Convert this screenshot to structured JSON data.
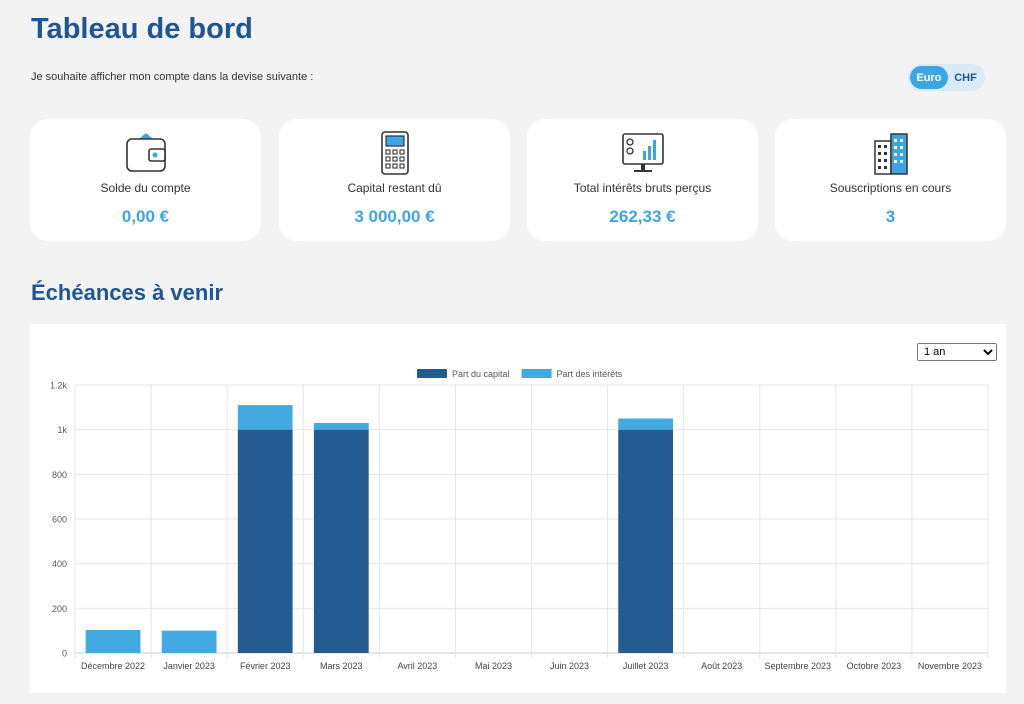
{
  "page": {
    "title": "Tableau de bord",
    "currency_prompt": "Je souhaite afficher mon compte dans la devise suivante :",
    "currency_options": [
      "Euro",
      "CHF"
    ],
    "currency_selected": "Euro"
  },
  "cards": [
    {
      "icon": "wallet-icon",
      "label": "Solde du compte",
      "value": "0,00 €"
    },
    {
      "icon": "calculator-icon",
      "label": "Capital restant dû",
      "value": "3 000,00 €"
    },
    {
      "icon": "monitor-chart-icon",
      "label": "Total intérêts bruts perçus",
      "value": "262,33 €"
    },
    {
      "icon": "building-icon",
      "label": "Souscriptions en cours",
      "value": "3"
    }
  ],
  "schedule": {
    "title": "Échéances à venir",
    "period_select": {
      "selected": "1 an",
      "options": [
        "1 an"
      ]
    }
  },
  "colors": {
    "capital": "#245b91",
    "interest": "#42a9e1",
    "accent": "#3aa7e4",
    "title": "#1f5592"
  },
  "chart_data": {
    "type": "bar",
    "stacked": true,
    "categories": [
      "Décembre 2022",
      "Janvier 2023",
      "Février 2023",
      "Mars 2023",
      "Avril 2023",
      "Mai 2023",
      "Juin 2023",
      "Juillet 2023",
      "Août 2023",
      "Septembre 2023",
      "Octobre 2023",
      "Novembre 2023"
    ],
    "series": [
      {
        "name": "Part du capital",
        "values": [
          0,
          0,
          1000,
          1000,
          0,
          0,
          0,
          1000,
          0,
          0,
          0,
          0
        ]
      },
      {
        "name": "Part des intérêts",
        "values": [
          103,
          100,
          110,
          30,
          0,
          0,
          0,
          50,
          0,
          0,
          0,
          0
        ]
      }
    ],
    "y_ticks": [
      "0",
      "200",
      "400",
      "600",
      "800",
      "1k",
      "1.2k"
    ],
    "ylim": [
      0,
      1200
    ],
    "grid": true,
    "legend": "top-center"
  }
}
